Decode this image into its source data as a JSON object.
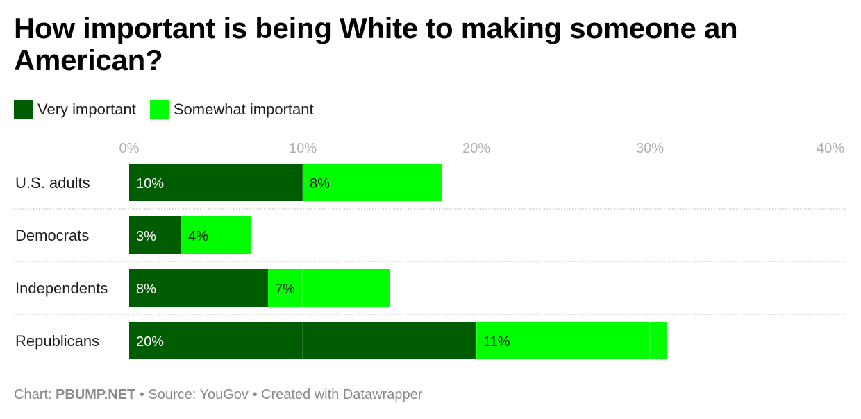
{
  "header": {
    "title": "How important is being White to making someone an American?"
  },
  "legend": {
    "items": [
      {
        "label": "Very important",
        "color": "#005c00"
      },
      {
        "label": "Somewhat important",
        "color": "#00ff00"
      }
    ]
  },
  "footer": {
    "chart_prefix": "Chart: ",
    "chart_credit": "PBUMP.NET",
    "source_text": " • Source: YouGov • Created with Datawrapper"
  },
  "chart_data": {
    "type": "bar",
    "orientation": "horizontal",
    "stacked": true,
    "title": "How important is being White to making someone an American?",
    "categories": [
      "U.S. adults",
      "Democrats",
      "Independents",
      "Republicans"
    ],
    "series": [
      {
        "name": "Very important",
        "color": "#005c00",
        "values": [
          10,
          3,
          8,
          20
        ],
        "labels": [
          "10%",
          "3%",
          "8%",
          "20%"
        ],
        "label_color": "#ffffff"
      },
      {
        "name": "Somewhat important",
        "color": "#00ff00",
        "values": [
          8,
          4,
          7,
          11
        ],
        "labels": [
          "8%",
          "4%",
          "7%",
          "11%"
        ],
        "label_color": "#1d1d1d"
      }
    ],
    "xlim": [
      0,
      40
    ],
    "xticks": [
      0,
      10,
      20,
      30,
      40
    ],
    "tick_labels": [
      "0%",
      "10%",
      "20%",
      "30%",
      "40%"
    ],
    "grid": true,
    "legend_position": "top-left"
  }
}
